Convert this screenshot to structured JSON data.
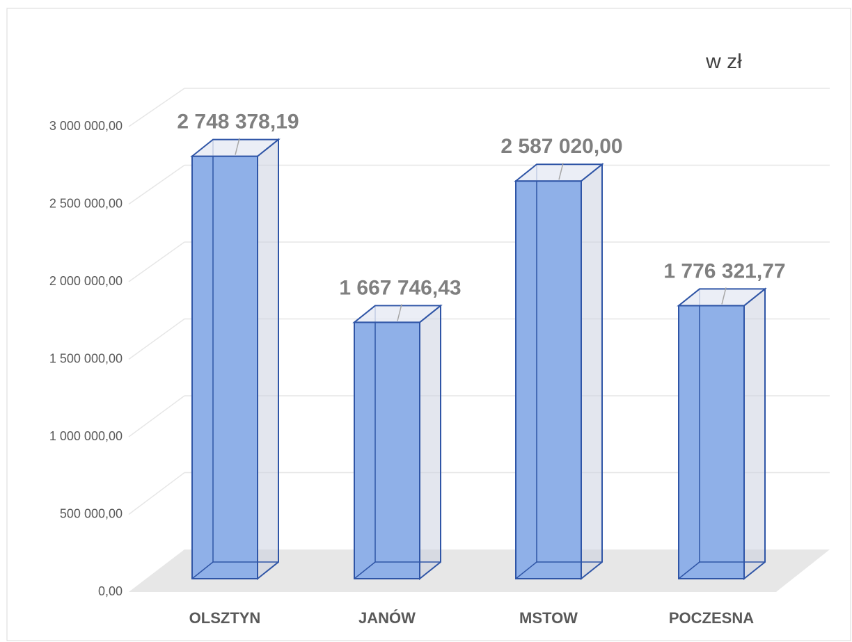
{
  "chart_data": {
    "type": "bar3d",
    "annotation": "w zł",
    "categories": [
      "OLSZTYN",
      "JANÓW",
      "MSTOW",
      "POCZESNA"
    ],
    "values": [
      2748378.19,
      1667746.43,
      2587020.0,
      1776321.77
    ],
    "value_labels": [
      "2 748 378,19",
      "1 667 746,43",
      "2 587 020,00",
      "1 776 321,77"
    ],
    "color": "#8fb0e8",
    "ylim": [
      0,
      3000000
    ],
    "yticks": [
      {
        "value": 0,
        "label": "0,00"
      },
      {
        "value": 500000,
        "label": "500 000,00"
      },
      {
        "value": 1000000,
        "label": "1 000 000,00"
      },
      {
        "value": 1500000,
        "label": "1 500 000,00"
      },
      {
        "value": 2000000,
        "label": "2 000 000,00"
      },
      {
        "value": 2500000,
        "label": "2 500 000,00"
      },
      {
        "value": 3000000,
        "label": "3 000 000,00"
      }
    ],
    "grid": true
  }
}
